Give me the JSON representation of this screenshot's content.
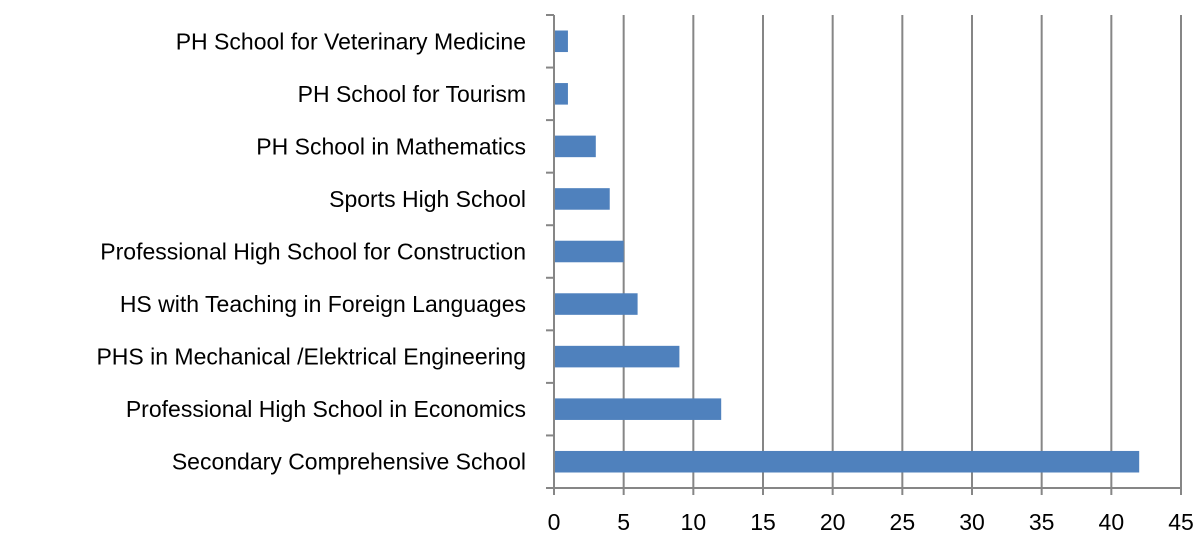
{
  "chart_data": {
    "type": "bar",
    "orientation": "horizontal",
    "categories": [
      "Secondary Comprehensive School",
      "Professional High School in Economics",
      "PHS in Mechanical /Elektrical Engineering",
      "HS with Teaching in Foreign Languages",
      "Professional High School for Construction",
      "Sports High School",
      "PH School in Mathematics",
      "PH School for Tourism",
      "PH School for Veterinary Medicine"
    ],
    "values": [
      42,
      12,
      9,
      6,
      5,
      4,
      3,
      1,
      1
    ],
    "xlim": [
      0,
      45
    ],
    "x_ticks": [
      "0",
      "5",
      "10",
      "15",
      "20",
      "25",
      "30",
      "35",
      "40",
      "45"
    ],
    "grid": "vertical",
    "legend": "none",
    "bar_color": "#4F81BD"
  }
}
